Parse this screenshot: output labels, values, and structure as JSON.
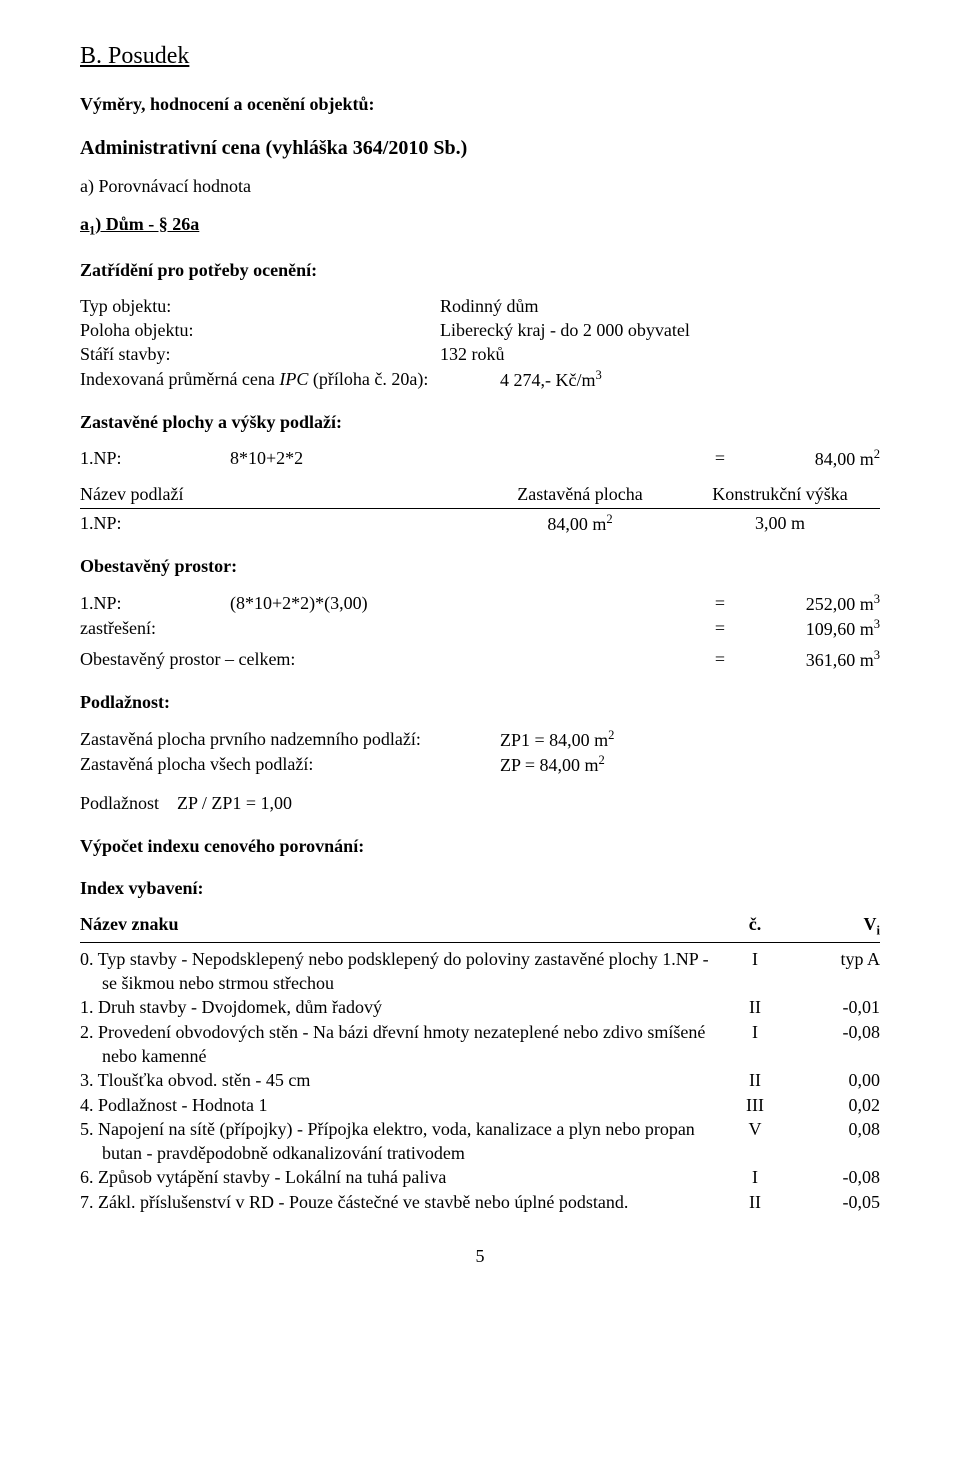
{
  "title": "B. Posudek",
  "sub1": "Výměry, hodnocení a ocenění objektů:",
  "sub2": "Administrativní cena (vyhláška 364/2010 Sb.)",
  "sub3": "a) Porovnávací hodnota",
  "sub4_pre": "a",
  "sub4_sub": "1",
  "sub4_post": ") Dům - § 26a",
  "zatrideni_h": "Zatřídění pro potřeby ocenění:",
  "kv": {
    "typ_l": "Typ objektu:",
    "typ_v": "Rodinný dům",
    "poloha_l": "Poloha objektu:",
    "poloha_v": "Liberecký kraj - do 2 000 obyvatel",
    "stari_l": "Stáří stavby:",
    "stari_v": "132 roků",
    "idx_pre": "Indexovaná průměrná cena ",
    "idx_it": "IPC",
    "idx_post": " (příloha č. 20a):",
    "idx_v_pre": "4 274,- Kč/m",
    "idx_v_sup": "3"
  },
  "zast_h": "Zastavěné plochy a výšky podlaží:",
  "zast_row": {
    "c1": "1.NP:",
    "c2": "8*10+2*2",
    "eq": "=",
    "v_pre": "84,00 m",
    "v_sup": "2"
  },
  "tbl_head": {
    "c1": "Název podlaží",
    "c2": "Zastavěná plocha",
    "c3": "Konstrukční výška"
  },
  "tbl_row": {
    "c1": "1.NP:",
    "c2_pre": "84,00 m",
    "c2_sup": "2",
    "c3": "3,00 m"
  },
  "obest_h": "Obestavěný prostor:",
  "ob_rows": [
    {
      "c1": "1.NP:",
      "c2": "(8*10+2*2)*(3,00)",
      "eq": "=",
      "v_pre": "252,00 m",
      "v_sup": "3"
    },
    {
      "c1": "zastřešení:",
      "c2": "",
      "eq": "=",
      "v_pre": "109,60 m",
      "v_sup": "3"
    }
  ],
  "ob_total": {
    "c1": "Obestavěný prostor – celkem:",
    "eq": "=",
    "v_pre": "361,60 m",
    "v_sup": "3"
  },
  "podl_h": "Podlažnost:",
  "podl_rows": [
    {
      "l": "Zastavěná plocha prvního nadzemního podlaží:",
      "v_pre": "ZP1 = 84,00 m",
      "v_sup": "2"
    },
    {
      "l": "Zastavěná plocha všech podlaží:",
      "v_pre": "ZP  = 84,00 m",
      "v_sup": "2"
    }
  ],
  "podl_ratio": "Podlažnost ZP / ZP1 = 1,00",
  "vypocet_h": "Výpočet indexu cenového porovnání:",
  "index_h": "Index vybavení:",
  "idx_head": {
    "name": "Název znaku",
    "c": "č.",
    "v_pre": "V",
    "v_sub": "i"
  },
  "idx_rows": [
    {
      "name": "0. Typ stavby - Nepodsklepený nebo podsklepený do poloviny zastavěné plochy 1.NP - se šikmou nebo strmou střechou",
      "c": "I",
      "v": "typ A"
    },
    {
      "name": "1. Druh stavby - Dvojdomek, dům řadový",
      "c": "II",
      "v": "-0,01"
    },
    {
      "name": "2. Provedení obvodových stěn - Na bázi dřevní hmoty nezateplené nebo zdivo smíšené nebo kamenné",
      "c": "I",
      "v": "-0,08"
    },
    {
      "name": "3. Tloušťka obvod. stěn - 45 cm",
      "c": "II",
      "v": "0,00"
    },
    {
      "name": "4. Podlažnost - Hodnota 1",
      "c": "III",
      "v": "0,02"
    },
    {
      "name": "5. Napojení na sítě (přípojky) - Přípojka elektro, voda, kanalizace a plyn nebo propan butan - pravděpodobně odkanalizování trativodem",
      "c": "V",
      "v": "0,08"
    },
    {
      "name": "6. Způsob vytápění stavby - Lokální na tuhá paliva",
      "c": "I",
      "v": "-0,08"
    },
    {
      "name": "7. Zákl. příslušenství v RD - Pouze částečné ve stavbě nebo úplné podstand.",
      "c": "II",
      "v": "-0,05"
    }
  ],
  "pagenum": "5"
}
